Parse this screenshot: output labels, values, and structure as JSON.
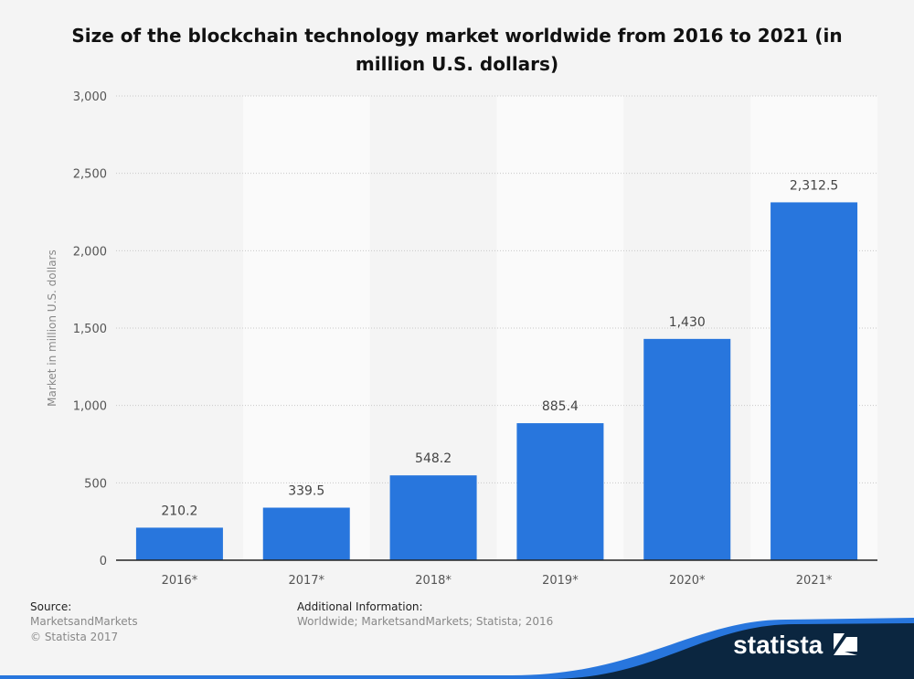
{
  "chart_data": {
    "type": "bar",
    "title": "Size of the blockchain technology market worldwide from 2016 to 2021 (in million U.S. dollars)",
    "categories": [
      "2016*",
      "2017*",
      "2018*",
      "2019*",
      "2020*",
      "2021*"
    ],
    "values": [
      210.2,
      339.5,
      548.2,
      885.4,
      1430,
      2312.5
    ],
    "data_labels": [
      "210.2",
      "339.5",
      "548.2",
      "885.4",
      "1,430",
      "2,312.5"
    ],
    "xlabel": "",
    "ylabel": "Market in million U.S. dollars",
    "ylim": [
      0,
      3000
    ],
    "yticks": [
      0,
      500,
      1000,
      1500,
      2000,
      2500,
      3000
    ],
    "ytick_labels": [
      "0",
      "500",
      "1,000",
      "1,500",
      "2,000",
      "2,500",
      "3,000"
    ],
    "grid": true,
    "bar_color": "#2876dd"
  },
  "footer": {
    "source_label": "Source:",
    "source": "MarketsandMarkets",
    "copyright": "© Statista 2017",
    "additional_label": "Additional Information:",
    "additional": "Worldwide; MarketsandMarkets; Statista; 2016"
  },
  "logo": {
    "text": "statista",
    "colors": {
      "navy": "#0b2640",
      "blue": "#2876dd"
    }
  }
}
